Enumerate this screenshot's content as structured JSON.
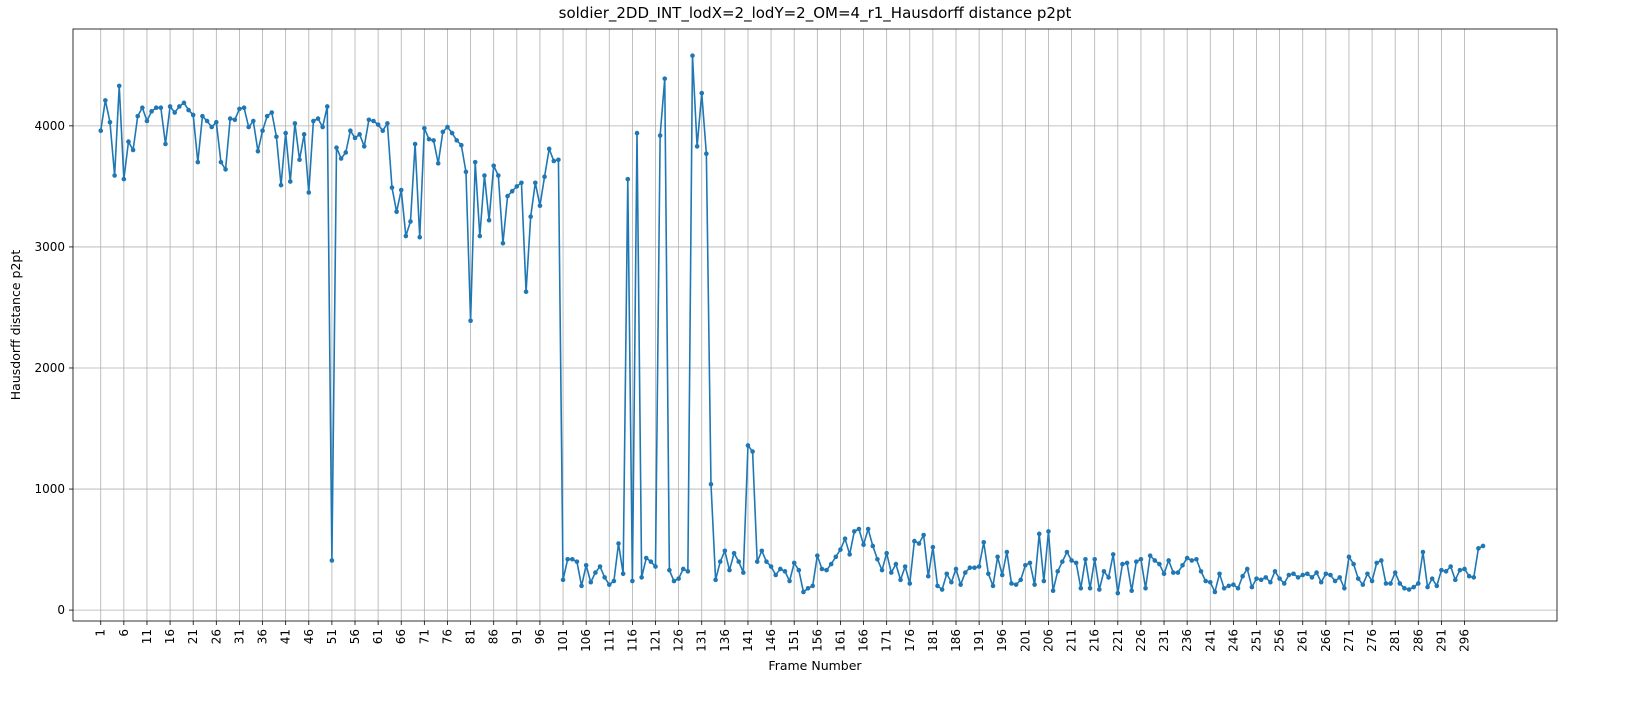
{
  "chart_data": {
    "type": "line",
    "title": "soldier_2DD_INT_lodX=2_lodY=2_OM=4_r1_Hausdorff distance p2pt",
    "xlabel": "Frame Number",
    "ylabel": "Hausdorff distance p2pt",
    "xlim": [
      -5,
      316
    ],
    "ylim": [
      -90,
      4800
    ],
    "x_ticks": [
      1,
      6,
      11,
      16,
      21,
      26,
      31,
      36,
      41,
      46,
      51,
      56,
      61,
      66,
      71,
      76,
      81,
      86,
      91,
      96,
      101,
      106,
      111,
      116,
      121,
      126,
      131,
      136,
      141,
      146,
      151,
      156,
      161,
      166,
      171,
      176,
      181,
      186,
      191,
      196,
      201,
      206,
      211,
      216,
      221,
      226,
      231,
      236,
      241,
      246,
      251,
      256,
      261,
      266,
      271,
      276,
      281,
      286,
      291,
      296
    ],
    "y_ticks": [
      0,
      1000,
      2000,
      3000,
      4000
    ],
    "grid": true,
    "color": "#1f77b4",
    "series": [
      {
        "x_start": 1,
        "values": [
          3960,
          4210,
          4030,
          3590,
          4330,
          3560,
          3870,
          3800,
          4080,
          4150,
          4040,
          4120,
          4150,
          4150,
          3850,
          4160,
          4110,
          4160,
          4190,
          4130,
          4090,
          3700,
          4080,
          4040,
          3990,
          4030,
          3700,
          3640,
          4060,
          4050,
          4140,
          4150,
          3990,
          4040,
          3790,
          3960,
          4080,
          4110,
          3910,
          3510,
          3940,
          3540,
          4020,
          3720,
          3930,
          3450,
          4040,
          4060,
          3990,
          4160,
          410,
          3820,
          3730,
          3780,
          3960,
          3900,
          3930,
          3830,
          4050,
          4040,
          4010,
          3960,
          4020,
          3490,
          3290,
          3470,
          3090,
          3210,
          3850,
          3080,
          3980,
          3890,
          3880,
          3690,
          3950,
          3990,
          3940,
          3880,
          3840,
          3620,
          2390,
          3700,
          3090,
          3590,
          3220,
          3670,
          3590,
          3030,
          3420,
          3460,
          3500,
          3530,
          2630,
          3250,
          3530,
          3340,
          3580,
          3810,
          3710,
          3720,
          250,
          420,
          420,
          400,
          200,
          370,
          230,
          310,
          360,
          270,
          210,
          240,
          550,
          300,
          3560,
          240,
          3940,
          270,
          430,
          400,
          360,
          3920,
          4390,
          330,
          240,
          260,
          340,
          320,
          4580,
          3830,
          4270,
          3770,
          1040,
          250,
          400,
          490,
          330,
          470,
          400,
          310,
          1360,
          1310,
          400,
          490,
          400,
          360,
          290,
          340,
          320,
          240,
          390,
          330,
          150,
          180,
          200,
          450,
          340,
          330,
          380,
          440,
          500,
          590,
          460,
          650,
          670,
          540,
          670,
          530,
          420,
          330,
          470,
          310,
          380,
          250,
          360,
          220,
          570,
          550,
          620,
          280,
          520,
          200,
          170,
          300,
          230,
          340,
          210,
          310,
          350,
          350,
          360,
          560,
          300,
          200,
          440,
          290,
          480,
          220,
          210,
          250,
          370,
          390,
          210,
          630,
          240,
          650,
          160,
          320,
          400,
          480,
          410,
          390,
          180,
          420,
          180,
          420,
          170,
          320,
          270,
          460,
          140,
          380,
          390,
          160,
          400,
          420,
          180,
          450,
          410,
          380,
          300,
          410,
          310,
          310,
          370,
          430,
          410,
          420,
          320,
          240,
          230,
          150,
          300,
          180,
          200,
          210,
          180,
          280,
          340,
          190,
          260,
          250,
          270,
          230,
          320,
          260,
          220,
          290,
          300,
          270,
          290,
          300,
          270,
          310,
          230,
          300,
          290,
          240,
          270,
          180,
          440,
          380,
          260,
          210,
          300,
          240,
          390,
          410,
          220,
          220,
          310,
          220,
          180,
          170,
          190,
          220,
          480,
          190,
          260,
          200,
          330,
          320,
          360,
          250,
          330,
          340,
          280,
          270,
          510,
          530
        ]
      }
    ]
  }
}
